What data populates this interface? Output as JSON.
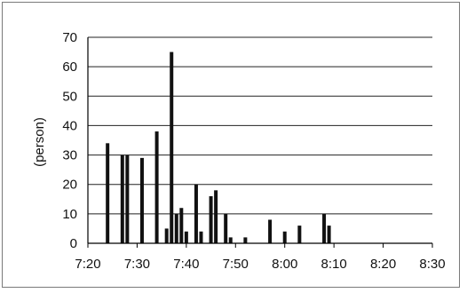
{
  "chart_data": {
    "type": "bar",
    "title": "",
    "xlabel": "",
    "ylabel": "(person)",
    "ylim": [
      0,
      70
    ],
    "yticks": [
      0,
      10,
      20,
      30,
      40,
      50,
      60,
      70
    ],
    "xlim": [
      "7:20",
      "8:30"
    ],
    "xtick_labels": [
      "7:20",
      "7:30",
      "7:40",
      "7:50",
      "8:00",
      "8:10",
      "8:20",
      "8:30"
    ],
    "grid": true,
    "bar_color": "#111111",
    "grid_color": "#222222",
    "x": [
      "7:24",
      "7:27",
      "7:28",
      "7:31",
      "7:34",
      "7:36",
      "7:37",
      "7:38",
      "7:39",
      "7:40",
      "7:42",
      "7:43",
      "7:45",
      "7:46",
      "7:48",
      "7:49",
      "7:52",
      "7:57",
      "8:00",
      "8:03",
      "8:08",
      "8:09"
    ],
    "values": [
      34,
      30,
      30,
      29,
      38,
      5,
      65,
      10,
      12,
      4,
      20,
      4,
      16,
      18,
      10,
      2,
      2,
      8,
      4,
      6,
      10,
      6
    ]
  }
}
